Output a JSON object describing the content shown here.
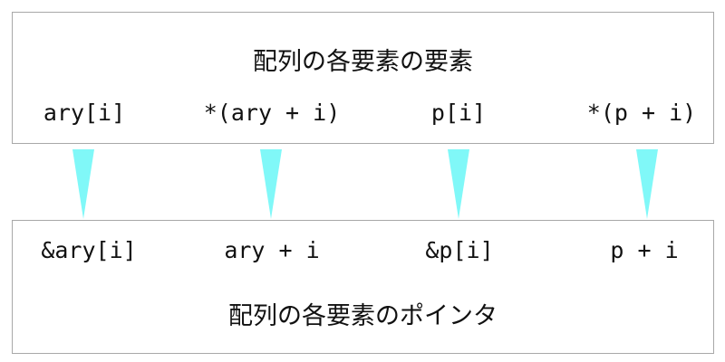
{
  "top_box": {
    "title": "配列の各要素の要素",
    "expressions": [
      "ary[i]",
      "*(ary + i)",
      "p[i]",
      "*(p + i)"
    ]
  },
  "bottom_box": {
    "title": "配列の各要素のポインタ",
    "expressions": [
      "&ary[i]",
      "ary + i",
      "&p[i]",
      "p + i"
    ]
  },
  "colors": {
    "arrow": "#80f8f8",
    "border": "#a8a8a8",
    "text": "#111111"
  }
}
